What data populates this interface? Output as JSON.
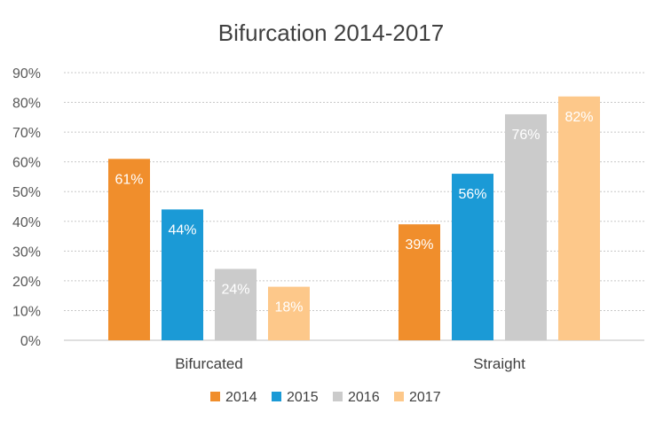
{
  "chart_data": {
    "type": "bar",
    "title": "Bifurcation 2014-2017",
    "categories": [
      "Bifurcated",
      "Straight"
    ],
    "series": [
      {
        "name": "2014",
        "color": "#F08E2C",
        "values": [
          61,
          39
        ],
        "labels": [
          "61%",
          "39%"
        ]
      },
      {
        "name": "2015",
        "color": "#1B9AD6",
        "values": [
          44,
          56
        ],
        "labels": [
          "44%",
          "56%"
        ]
      },
      {
        "name": "2016",
        "color": "#CBCBCB",
        "values": [
          24,
          76
        ],
        "labels": [
          "24%",
          "76%"
        ]
      },
      {
        "name": "2017",
        "color": "#FDC88A",
        "values": [
          18,
          82
        ],
        "labels": [
          "18%",
          "82%"
        ]
      }
    ],
    "yticks": [
      "0%",
      "10%",
      "20%",
      "30%",
      "40%",
      "50%",
      "60%",
      "70%",
      "80%",
      "90%"
    ],
    "ylim": [
      0,
      90
    ],
    "grid": true,
    "legend_position": "bottom"
  }
}
